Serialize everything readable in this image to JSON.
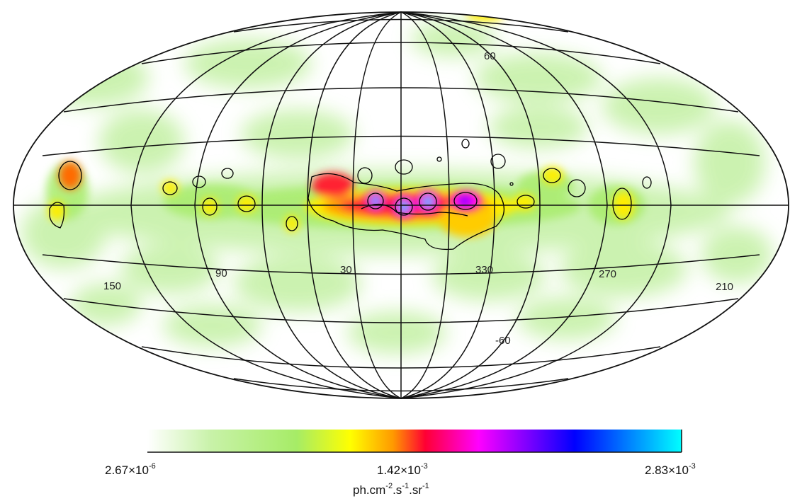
{
  "map": {
    "projection": "Hammer-Aitoff all-sky",
    "longitude_labels": [
      "150",
      "90",
      "30",
      "330",
      "270",
      "210"
    ],
    "latitude_labels": [
      "60",
      "-60"
    ]
  },
  "colorbar": {
    "min_label": {
      "base": "2.67×10",
      "exp": "-6"
    },
    "mid_label": {
      "base": "1.42×10",
      "exp": "-3"
    },
    "max_label": {
      "base": "2.83×10",
      "exp": "-3"
    },
    "units": {
      "p1": "ph.cm",
      "e1": "-2",
      "p2": ".s",
      "e2": "-1",
      "p3": ".sr",
      "e3": "-1"
    },
    "colors": [
      "#ffffff",
      "#bff0a0",
      "#9bea5e",
      "#ffff00",
      "#ff9900",
      "#ff0033",
      "#ff00ff",
      "#0000ff",
      "#00ffff"
    ]
  }
}
